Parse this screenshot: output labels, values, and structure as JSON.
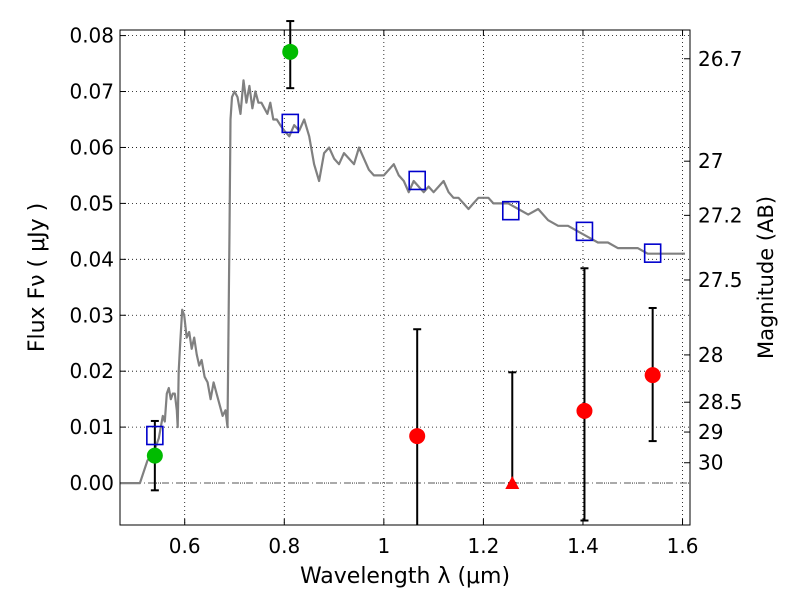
{
  "chart_data": {
    "type": "scatter",
    "title": "",
    "xlabel": "Wavelength  λ (μm)",
    "ylabel": "Flux  Fν  ( μJy )",
    "y2label": "Magnitude (AB)",
    "xlim": [
      0.47,
      1.615
    ],
    "ylim": [
      -0.0075,
      0.081
    ],
    "grid": true,
    "x_ticks": [
      {
        "v": 0.6,
        "label": "0.6"
      },
      {
        "v": 0.8,
        "label": "0.8"
      },
      {
        "v": 1.0,
        "label": "1"
      },
      {
        "v": 1.2,
        "label": "1.2"
      },
      {
        "v": 1.4,
        "label": "1.4"
      },
      {
        "v": 1.6,
        "label": "1.6"
      }
    ],
    "y_ticks": [
      {
        "v": 0.0,
        "label": "0.00"
      },
      {
        "v": 0.01,
        "label": "0.01"
      },
      {
        "v": 0.02,
        "label": "0.02"
      },
      {
        "v": 0.03,
        "label": "0.03"
      },
      {
        "v": 0.04,
        "label": "0.04"
      },
      {
        "v": 0.05,
        "label": "0.05"
      },
      {
        "v": 0.06,
        "label": "0.06"
      },
      {
        "v": 0.07,
        "label": "0.07"
      },
      {
        "v": 0.08,
        "label": "0.08"
      }
    ],
    "mag_ticks": [
      {
        "mag": 26.7,
        "label": "26.7"
      },
      {
        "mag": 27.0,
        "label": "27"
      },
      {
        "mag": 27.2,
        "label": "27.2"
      },
      {
        "mag": 27.5,
        "label": "27.5"
      },
      {
        "mag": 28.0,
        "label": "28"
      },
      {
        "mag": 28.5,
        "label": "28.5"
      },
      {
        "mag": 29.0,
        "label": "29"
      },
      {
        "mag": 30.0,
        "label": "30"
      }
    ],
    "zero_line": 0.0,
    "model_sed": {
      "color": "#808080",
      "x": [
        0.47,
        0.51,
        0.525,
        0.54,
        0.548,
        0.552,
        0.556,
        0.56,
        0.564,
        0.568,
        0.572,
        0.576,
        0.58,
        0.584,
        0.586,
        0.588,
        0.591,
        0.595,
        0.599,
        0.604,
        0.609,
        0.614,
        0.619,
        0.624,
        0.629,
        0.634,
        0.64,
        0.646,
        0.652,
        0.658,
        0.664,
        0.67,
        0.676,
        0.682,
        0.686,
        0.69,
        0.692,
        0.695,
        0.7,
        0.706,
        0.712,
        0.718,
        0.724,
        0.73,
        0.736,
        0.742,
        0.748,
        0.754,
        0.76,
        0.766,
        0.772,
        0.778,
        0.785,
        0.792,
        0.8,
        0.81,
        0.82,
        0.83,
        0.84,
        0.85,
        0.86,
        0.87,
        0.88,
        0.89,
        0.9,
        0.91,
        0.92,
        0.93,
        0.94,
        0.95,
        0.96,
        0.97,
        0.98,
        0.99,
        1.0,
        1.01,
        1.02,
        1.03,
        1.04,
        1.05,
        1.06,
        1.07,
        1.08,
        1.09,
        1.1,
        1.11,
        1.12,
        1.13,
        1.14,
        1.15,
        1.16,
        1.17,
        1.18,
        1.19,
        1.2,
        1.21,
        1.22,
        1.23,
        1.24,
        1.25,
        1.27,
        1.29,
        1.31,
        1.33,
        1.35,
        1.37,
        1.39,
        1.41,
        1.43,
        1.45,
        1.47,
        1.49,
        1.51,
        1.53,
        1.55,
        1.57,
        1.59,
        1.605
      ],
      "y": [
        0.0,
        0.0,
        0.004,
        0.006,
        0.008,
        0.01,
        0.012,
        0.011,
        0.016,
        0.017,
        0.015,
        0.016,
        0.016,
        0.013,
        0.01,
        0.02,
        0.025,
        0.031,
        0.03,
        0.026,
        0.027,
        0.024,
        0.026,
        0.023,
        0.021,
        0.022,
        0.019,
        0.018,
        0.015,
        0.018,
        0.016,
        0.014,
        0.012,
        0.013,
        0.01,
        0.045,
        0.065,
        0.069,
        0.07,
        0.069,
        0.066,
        0.072,
        0.068,
        0.071,
        0.067,
        0.07,
        0.068,
        0.068,
        0.067,
        0.066,
        0.068,
        0.065,
        0.065,
        0.064,
        0.063,
        0.062,
        0.064,
        0.063,
        0.065,
        0.062,
        0.057,
        0.054,
        0.059,
        0.06,
        0.058,
        0.057,
        0.059,
        0.058,
        0.057,
        0.06,
        0.058,
        0.056,
        0.055,
        0.055,
        0.055,
        0.056,
        0.057,
        0.055,
        0.054,
        0.052,
        0.054,
        0.053,
        0.052,
        0.053,
        0.052,
        0.053,
        0.054,
        0.052,
        0.051,
        0.051,
        0.05,
        0.049,
        0.05,
        0.051,
        0.051,
        0.051,
        0.05,
        0.05,
        0.05,
        0.05,
        0.049,
        0.048,
        0.049,
        0.047,
        0.046,
        0.046,
        0.045,
        0.044,
        0.043,
        0.043,
        0.042,
        0.042,
        0.042,
        0.041,
        0.041,
        0.041,
        0.041,
        0.041
      ]
    },
    "model_photometry": {
      "marker": "open-square",
      "color": "#0000cc",
      "x": [
        0.54,
        0.812,
        1.067,
        1.255,
        1.403,
        1.54
      ],
      "y": [
        0.0085,
        0.0643,
        0.0541,
        0.0487,
        0.045,
        0.0411
      ]
    },
    "detections": {
      "marker": "filled-circle",
      "color": "#00bb00",
      "x": [
        0.54,
        0.812
      ],
      "y": [
        0.0049,
        0.0771
      ],
      "err_low": [
        0.0062,
        0.0065
      ],
      "err_high": [
        0.0062,
        0.0055
      ]
    },
    "nondetections": {
      "marker": "filled-circle",
      "color": "#ff0000",
      "x": [
        1.067,
        1.403,
        1.54
      ],
      "y": [
        0.0084,
        0.0129,
        0.0193
      ],
      "err_low": [
        0.0165,
        0.0196,
        0.0118
      ],
      "err_high": [
        0.0191,
        0.0255,
        0.012
      ]
    },
    "upper_limit": {
      "marker": "filled-triangle",
      "color": "#ff0000",
      "x": [
        1.258
      ],
      "y": [
        0.0
      ],
      "err_high": [
        0.0198
      ]
    }
  }
}
